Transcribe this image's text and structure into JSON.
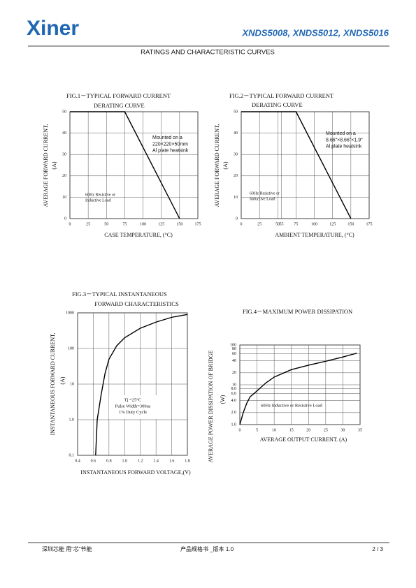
{
  "header": {
    "logo": "Xiner",
    "title": "XNDS5008, XNDS5012, XNDS5016",
    "subtitle": "RATINGS AND CHARACTERISTIC CURVES"
  },
  "chart_data": [
    {
      "type": "line",
      "title": "FIG.1－TYPICAL  FORWARD  CURRENT",
      "subtitle": "DERATING  CURVE",
      "ylabel": "AVERAGE  FORWARD  CURRENT,",
      "yunit": "(A)",
      "xlabel": "CASE  TEMPERATURE,  (°C)",
      "series": [
        {
          "color": "#000000",
          "x": [
            0,
            75,
            150
          ],
          "values": [
            50,
            50,
            0
          ]
        }
      ],
      "xlim": [
        0,
        175
      ],
      "xticks": [
        0,
        25,
        50,
        75,
        100,
        125,
        150,
        175
      ],
      "ylim": [
        0,
        50
      ],
      "yticks": [
        0,
        10,
        20,
        30,
        40,
        50
      ],
      "ylog": false,
      "grid": true,
      "annotations": [
        [
          "Mounted on a",
          "220×220×50mm",
          "Al plate heatsink"
        ],
        [
          "60Hz Resistive  or",
          "Inductive Load"
        ]
      ]
    },
    {
      "type": "line",
      "title": "FIG.2－TYPICAL  FORWARD  CURRENT",
      "subtitle": "DERATING  CURVE",
      "ylabel": "AVERAGE  FORWARD  CURRENT,",
      "yunit": "(A)",
      "xlabel": "AMBIENT  TEMPERATURE,  (°C)",
      "series": [
        {
          "color": "#000000",
          "x": [
            0,
            75,
            150
          ],
          "values": [
            50,
            50,
            0
          ]
        }
      ],
      "xlim": [
        0,
        175
      ],
      "xticks": [
        0,
        25,
        50,
        55,
        75,
        100,
        125,
        150,
        175
      ],
      "ylim": [
        0,
        50
      ],
      "yticks": [
        0,
        10,
        20,
        30,
        40,
        50
      ],
      "ylog": false,
      "grid": true,
      "annotations": [
        [
          "Mounted on a",
          "8.66\"×8.66\"×1.9\"",
          "Al plate heatsink"
        ],
        [
          "60Hz Resistive  or",
          "Inductive Load"
        ]
      ]
    },
    {
      "type": "line",
      "title": "FIG.3－TYPICAL  INSTANTANEOUS",
      "subtitle": "FORWARD  CHARACTERISTICS",
      "ylabel": "INSTANTANEOUS  FORWARD  CURRENT,",
      "yunit": "(A)",
      "xlabel": "INSTANTANEOUS  FORWARD  VOLTAGE,(V)",
      "series": [
        {
          "color": "#000000",
          "x": [
            0.63,
            0.65,
            0.7,
            0.75,
            0.8,
            0.9,
            1.0,
            1.2,
            1.4,
            1.6,
            1.8
          ],
          "values": [
            0.1,
            1,
            5,
            20,
            50,
            120,
            200,
            370,
            550,
            750,
            900
          ]
        }
      ],
      "xlim": [
        0.4,
        1.8
      ],
      "xticks": [
        0.4,
        0.6,
        0.8,
        {
          "value": 1.0,
          "label": "1.0"
        },
        1.2,
        1.4,
        1.6,
        1.8
      ],
      "ylim": [
        0.1,
        1000
      ],
      "yticks": [
        1000,
        100,
        10,
        {
          "value": 1,
          "label": "1.0"
        },
        0.1
      ],
      "ylog": true,
      "grid": true,
      "annotations": [
        [
          "Tj =25°C",
          "Pulse Width=300us",
          "1% Duty Cycle"
        ]
      ]
    },
    {
      "type": "line",
      "title": "FIG.4－MAXIMUM  POWER  DISSIPATION",
      "ylabel": "AVERAGE  POWER  DISSIPATION  OF  BRIDGE",
      "yunit": "(W)",
      "xlabel": "AVERAGE  OUTPUT  CURRENT.  (A)",
      "series": [
        {
          "color": "#000000",
          "x": [
            0,
            1,
            2,
            3,
            5,
            7.5,
            10,
            15,
            20,
            25,
            30,
            34
          ],
          "values": [
            1,
            2,
            3.4,
            5,
            7,
            11,
            15.6,
            24,
            31,
            39,
            50,
            62
          ]
        }
      ],
      "xlim": [
        0,
        35
      ],
      "xticks": [
        0,
        5,
        10,
        15,
        20,
        25,
        30,
        35
      ],
      "ylim": [
        1,
        100
      ],
      "yticks": [
        100,
        80,
        60,
        40,
        20,
        10,
        {
          "value": 8,
          "label": "8.0"
        },
        {
          "value": 6,
          "label": "6.0"
        },
        {
          "value": 4,
          "label": "4.0"
        },
        {
          "value": 2,
          "label": "2.0"
        },
        {
          "value": 1,
          "label": "1.0"
        }
      ],
      "ylog": true,
      "grid": true,
      "annotations": [
        [
          "60Hz  Inductive  or  Resistive  Load"
        ]
      ]
    }
  ],
  "footer": {
    "left": "深圳芯能  用“芯”节能",
    "center": "产品规格书 _版本 1.0",
    "right": "2 / 3"
  }
}
